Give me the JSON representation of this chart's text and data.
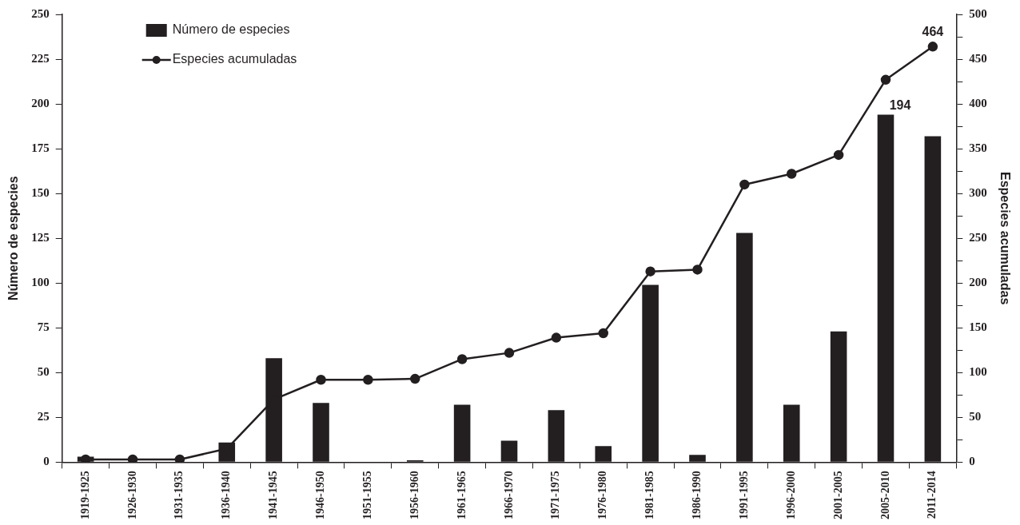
{
  "chart_data": {
    "type": "bar",
    "categories": [
      "1919-1925",
      "1926-1930",
      "1931-1935",
      "1936-1940",
      "1941-1945",
      "1946-1950",
      "1951-1955",
      "1956-1960",
      "1961-1965",
      "1966-1970",
      "1971-1975",
      "1976-1980",
      "1981-1985",
      "1986-1990",
      "1991-1995",
      "1996-2000",
      "2001-2005",
      "2005-2010",
      "2011-2014"
    ],
    "series": [
      {
        "name": "Número de especies",
        "color": "#231f20",
        "values": [
          3,
          0,
          0,
          11,
          58,
          33,
          0,
          1,
          32,
          12,
          29,
          9,
          99,
          4,
          128,
          32,
          73,
          194,
          182
        ],
        "value_labels": [
          null,
          null,
          null,
          null,
          null,
          null,
          null,
          null,
          null,
          null,
          null,
          null,
          null,
          null,
          null,
          null,
          null,
          "194",
          null
        ]
      },
      {
        "name": "Especies acumuladas",
        "type": "line",
        "axis": "y2",
        "color": "#231f20",
        "values": [
          3,
          3,
          3,
          15,
          70,
          92,
          92,
          93,
          115,
          122,
          139,
          144,
          213,
          215,
          310,
          322,
          343,
          427,
          464
        ],
        "value_labels": [
          null,
          null,
          null,
          null,
          null,
          null,
          null,
          null,
          null,
          null,
          null,
          null,
          null,
          null,
          null,
          null,
          null,
          null,
          "464"
        ]
      }
    ],
    "ylabel": "Número de especies",
    "y2label": "Especies acumuladas",
    "ylim": [
      0,
      250
    ],
    "yticks": [
      0,
      25,
      50,
      75,
      100,
      125,
      150,
      175,
      200,
      225,
      250
    ],
    "y2lim": [
      0,
      500
    ],
    "y2ticks": [
      0,
      {
        "value": 25,
        "label": null
      },
      50,
      {
        "value": 75,
        "label": null
      },
      100,
      {
        "value": 125,
        "label": null
      },
      150,
      {
        "value": 175,
        "label": null
      },
      200,
      {
        "value": 225,
        "label": null
      },
      250,
      {
        "value": 275,
        "label": null
      },
      300,
      {
        "value": 325,
        "label": null
      },
      350,
      {
        "value": 375,
        "label": null
      },
      400,
      {
        "value": 425,
        "label": null
      },
      450,
      {
        "value": 475,
        "label": null
      },
      500
    ],
    "marker": "circle",
    "line_style": "solid",
    "grid": false,
    "legend": "top left"
  }
}
